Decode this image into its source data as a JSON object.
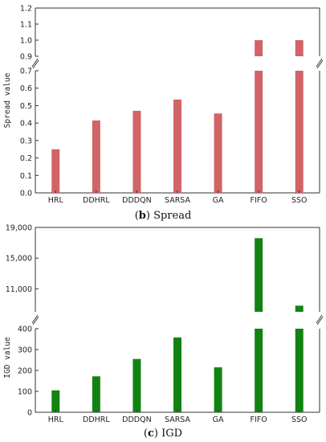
{
  "chart_data": [
    {
      "type": "bar",
      "panel": "b",
      "caption_letter": "b",
      "caption_text": "Spread",
      "ylabel": "Spread value",
      "categories": [
        "HRL",
        "DDHRL",
        "DDDQN",
        "SARSA",
        "GA",
        "FIFO",
        "SSO"
      ],
      "values": [
        0.25,
        0.415,
        0.47,
        0.535,
        0.455,
        1.0,
        1.0
      ],
      "color": "#d16467",
      "axis_break": true,
      "lower_ylim": [
        0.0,
        0.7
      ],
      "upper_ylim": [
        0.9,
        1.2
      ],
      "lower_ticks": [
        "0.0",
        "0.1",
        "0.2",
        "0.3",
        "0.4",
        "0.5",
        "0.6",
        "0.7"
      ],
      "upper_ticks": [
        "0.9",
        "1.0",
        "1.1",
        "1.2"
      ]
    },
    {
      "type": "bar",
      "panel": "c",
      "caption_letter": "c",
      "caption_text": "IGD",
      "ylabel": "IGD value",
      "categories": [
        "HRL",
        "DDHRL",
        "DDDQN",
        "SARSA",
        "GA",
        "FIFO",
        "SSO"
      ],
      "values": [
        105,
        172,
        255,
        358,
        215,
        17600,
        8800
      ],
      "color": "#128312",
      "axis_break": true,
      "lower_ylim": [
        0,
        400
      ],
      "upper_ylim": [
        8000,
        19000
      ],
      "lower_ticks": [
        "0",
        "100",
        "200",
        "300",
        "400"
      ],
      "upper_ticks": [
        "11,000",
        "15,000",
        "19,000"
      ]
    }
  ]
}
